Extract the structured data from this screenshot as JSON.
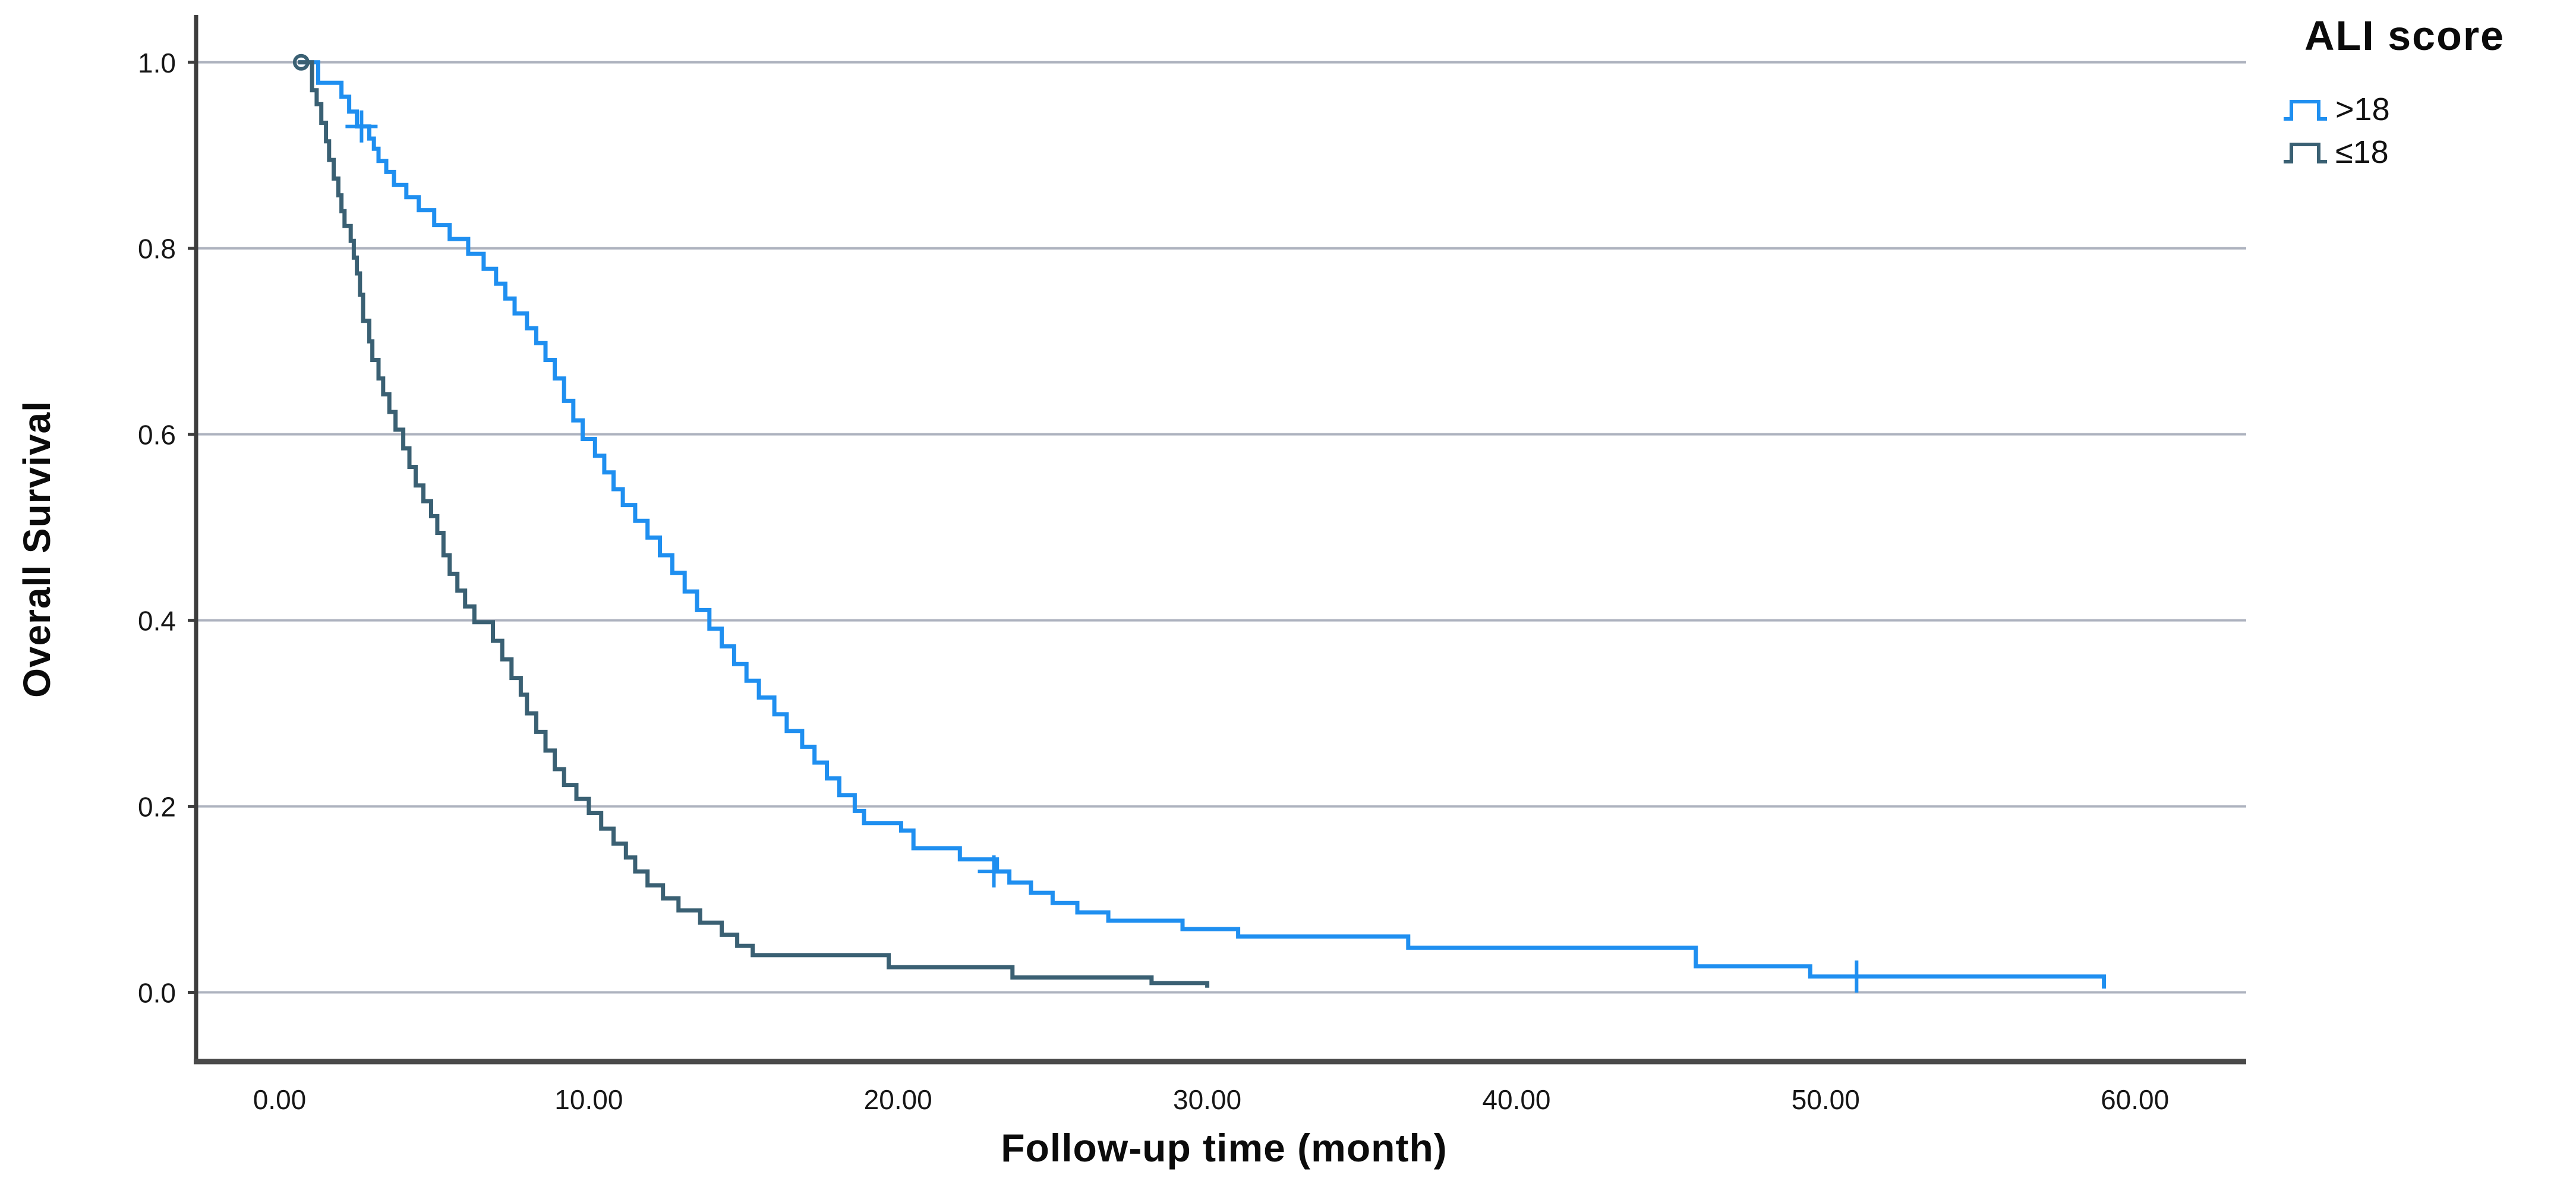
{
  "chart_data": {
    "type": "line",
    "subtype": "kaplan-meier-step-survival",
    "title": "",
    "xlabel": "Follow-up time (month)",
    "ylabel": "Overall Survival",
    "xlim": [
      -2.7,
      63.6
    ],
    "ylim": [
      -0.077,
      1.051
    ],
    "x_ticks": [
      0,
      10,
      20,
      30,
      40,
      50,
      60
    ],
    "x_tick_labels": [
      "0.00",
      "10.00",
      "20.00",
      "30.00",
      "40.00",
      "50.00",
      "60.00"
    ],
    "y_ticks": [
      0.0,
      0.2,
      0.4,
      0.6,
      0.8,
      1.0
    ],
    "y_tick_labels": [
      "0.0",
      "0.2",
      "0.4",
      "0.6",
      "0.8",
      "1.0"
    ],
    "grid": "horizontal",
    "grid_color": "#aeb3bf",
    "axis_color": "#3d3d3d",
    "tick_label_color": "#161616",
    "legend": {
      "title": "ALI score",
      "position": "top-right",
      "entries": [
        {
          "label": ">18",
          "color": "#1f8ff0"
        },
        {
          "label": "≤18",
          "color": "#3a6073"
        }
      ]
    },
    "series": [
      {
        "id": "gt18",
        "name": ">18",
        "color": "#1f8ff0",
        "points": [
          [
            0.6,
            1.0
          ],
          [
            1.25,
            0.978
          ],
          [
            2.0,
            0.963
          ],
          [
            2.25,
            0.947
          ],
          [
            2.5,
            0.931
          ],
          [
            2.9,
            0.918
          ],
          [
            3.05,
            0.907
          ],
          [
            3.2,
            0.894
          ],
          [
            3.45,
            0.882
          ],
          [
            3.7,
            0.868
          ],
          [
            4.1,
            0.855
          ],
          [
            4.5,
            0.841
          ],
          [
            5.0,
            0.825
          ],
          [
            5.5,
            0.81
          ],
          [
            6.1,
            0.794
          ],
          [
            6.6,
            0.778
          ],
          [
            7.0,
            0.762
          ],
          [
            7.3,
            0.746
          ],
          [
            7.6,
            0.73
          ],
          [
            8.0,
            0.714
          ],
          [
            8.3,
            0.698
          ],
          [
            8.6,
            0.68
          ],
          [
            8.9,
            0.66
          ],
          [
            9.2,
            0.636
          ],
          [
            9.5,
            0.615
          ],
          [
            9.8,
            0.595
          ],
          [
            10.2,
            0.577
          ],
          [
            10.5,
            0.559
          ],
          [
            10.8,
            0.541
          ],
          [
            11.1,
            0.524
          ],
          [
            11.5,
            0.507
          ],
          [
            11.9,
            0.489
          ],
          [
            12.3,
            0.47
          ],
          [
            12.7,
            0.451
          ],
          [
            13.1,
            0.431
          ],
          [
            13.5,
            0.411
          ],
          [
            13.9,
            0.391
          ],
          [
            14.3,
            0.372
          ],
          [
            14.7,
            0.353
          ],
          [
            15.1,
            0.335
          ],
          [
            15.5,
            0.317
          ],
          [
            16.0,
            0.299
          ],
          [
            16.4,
            0.281
          ],
          [
            16.9,
            0.264
          ],
          [
            17.3,
            0.247
          ],
          [
            17.7,
            0.23
          ],
          [
            18.1,
            0.212
          ],
          [
            18.6,
            0.195
          ],
          [
            18.9,
            0.182
          ],
          [
            20.1,
            0.174
          ],
          [
            20.5,
            0.155
          ],
          [
            22.0,
            0.143
          ],
          [
            23.2,
            0.13
          ],
          [
            23.6,
            0.118
          ],
          [
            24.3,
            0.107
          ],
          [
            25.0,
            0.096
          ],
          [
            25.8,
            0.086
          ],
          [
            26.8,
            0.077
          ],
          [
            29.2,
            0.068
          ],
          [
            31.0,
            0.06
          ],
          [
            36.5,
            0.048
          ],
          [
            45.8,
            0.028
          ],
          [
            49.5,
            0.017
          ],
          [
            59.0,
            0.004
          ]
        ],
        "censor_marks": [
          [
            2.65,
            0.931
          ],
          [
            23.1,
            0.13
          ],
          [
            51.0,
            0.017
          ]
        ]
      },
      {
        "id": "le18",
        "name": "≤18",
        "color": "#3a6073",
        "marker_dot": [
          0.7,
          1.0
        ],
        "points": [
          [
            0.6,
            1.0
          ],
          [
            1.05,
            0.97
          ],
          [
            1.2,
            0.955
          ],
          [
            1.35,
            0.935
          ],
          [
            1.5,
            0.915
          ],
          [
            1.6,
            0.895
          ],
          [
            1.75,
            0.875
          ],
          [
            1.9,
            0.857
          ],
          [
            2.0,
            0.84
          ],
          [
            2.1,
            0.824
          ],
          [
            2.3,
            0.808
          ],
          [
            2.4,
            0.79
          ],
          [
            2.5,
            0.773
          ],
          [
            2.6,
            0.75
          ],
          [
            2.7,
            0.722
          ],
          [
            2.9,
            0.7
          ],
          [
            3.0,
            0.68
          ],
          [
            3.2,
            0.66
          ],
          [
            3.35,
            0.643
          ],
          [
            3.55,
            0.624
          ],
          [
            3.75,
            0.605
          ],
          [
            4.0,
            0.585
          ],
          [
            4.2,
            0.565
          ],
          [
            4.4,
            0.545
          ],
          [
            4.65,
            0.528
          ],
          [
            4.9,
            0.512
          ],
          [
            5.1,
            0.494
          ],
          [
            5.3,
            0.47
          ],
          [
            5.5,
            0.45
          ],
          [
            5.75,
            0.432
          ],
          [
            6.0,
            0.415
          ],
          [
            6.3,
            0.398
          ],
          [
            6.9,
            0.378
          ],
          [
            7.2,
            0.358
          ],
          [
            7.5,
            0.338
          ],
          [
            7.8,
            0.32
          ],
          [
            8.0,
            0.3
          ],
          [
            8.3,
            0.28
          ],
          [
            8.6,
            0.26
          ],
          [
            8.9,
            0.24
          ],
          [
            9.2,
            0.223
          ],
          [
            9.6,
            0.208
          ],
          [
            10.0,
            0.193
          ],
          [
            10.4,
            0.176
          ],
          [
            10.8,
            0.16
          ],
          [
            11.2,
            0.145
          ],
          [
            11.5,
            0.13
          ],
          [
            11.9,
            0.115
          ],
          [
            12.4,
            0.101
          ],
          [
            12.9,
            0.088
          ],
          [
            13.6,
            0.075
          ],
          [
            14.3,
            0.062
          ],
          [
            14.8,
            0.05
          ],
          [
            15.3,
            0.04
          ],
          [
            19.7,
            0.027
          ],
          [
            23.7,
            0.016
          ],
          [
            28.2,
            0.01
          ],
          [
            30.0,
            0.005
          ]
        ],
        "censor_marks": []
      }
    ]
  }
}
